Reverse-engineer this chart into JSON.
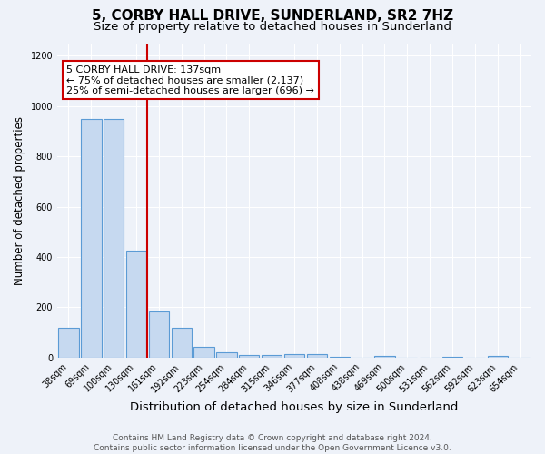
{
  "title": "5, CORBY HALL DRIVE, SUNDERLAND, SR2 7HZ",
  "subtitle": "Size of property relative to detached houses in Sunderland",
  "xlabel": "Distribution of detached houses by size in Sunderland",
  "ylabel": "Number of detached properties",
  "categories": [
    "38sqm",
    "69sqm",
    "100sqm",
    "130sqm",
    "161sqm",
    "192sqm",
    "223sqm",
    "254sqm",
    "284sqm",
    "315sqm",
    "346sqm",
    "377sqm",
    "408sqm",
    "438sqm",
    "469sqm",
    "500sqm",
    "531sqm",
    "562sqm",
    "592sqm",
    "623sqm",
    "654sqm"
  ],
  "values": [
    120,
    950,
    950,
    425,
    185,
    120,
    42,
    20,
    10,
    10,
    15,
    15,
    5,
    0,
    8,
    0,
    0,
    5,
    0,
    8,
    0
  ],
  "bar_color": "#c6d9f0",
  "bar_edge_color": "#5b9bd5",
  "red_line_x": 3.5,
  "annotation_text": "5 CORBY HALL DRIVE: 137sqm\n← 75% of detached houses are smaller (2,137)\n25% of semi-detached houses are larger (696) →",
  "annotation_box_color": "white",
  "annotation_box_edge_color": "#cc0000",
  "red_line_color": "#cc0000",
  "ylim": [
    0,
    1250
  ],
  "yticks": [
    0,
    200,
    400,
    600,
    800,
    1000,
    1200
  ],
  "footer": "Contains HM Land Registry data © Crown copyright and database right 2024.\nContains public sector information licensed under the Open Government Licence v3.0.",
  "title_fontsize": 11,
  "subtitle_fontsize": 9.5,
  "xlabel_fontsize": 9.5,
  "ylabel_fontsize": 8.5,
  "tick_fontsize": 7,
  "annotation_fontsize": 8,
  "footer_fontsize": 6.5,
  "background_color": "#eef2f9"
}
